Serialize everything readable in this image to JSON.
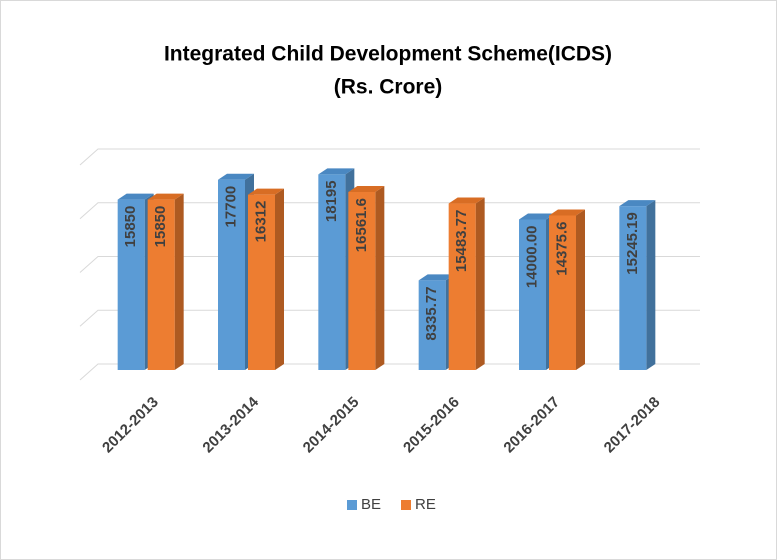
{
  "chart_data": {
    "type": "bar3d",
    "title": "Integrated Child Development Scheme(ICDS)",
    "subtitle": "(Rs. Crore)",
    "categories": [
      "2012-2013",
      "2013-2014",
      "2014-2015",
      "2015-2016",
      "2016-2017",
      "2017-2018"
    ],
    "series": [
      {
        "name": "BE",
        "color": "#5b9bd5",
        "side": "#41719c",
        "top": "#4a88c2",
        "values": [
          15850,
          17700,
          18195,
          8335.77,
          14000,
          15245.19
        ],
        "value_labels": [
          "15850",
          "17700",
          "18195",
          "8335.77",
          "14000.00",
          "15245.19"
        ]
      },
      {
        "name": "RE",
        "color": "#ed7d31",
        "side": "#ae5a21",
        "top": "#d86d24",
        "values": [
          15850,
          16312,
          16561.6,
          15483.77,
          14375.6,
          null
        ],
        "value_labels": [
          "15850",
          "16312",
          "16561.6",
          "15483.77",
          "14375.6",
          null
        ]
      }
    ],
    "ylim": [
      0,
      20000
    ],
    "yticks": [
      0,
      5000,
      10000,
      15000,
      20000
    ],
    "grid": true,
    "legend": "bottom"
  }
}
